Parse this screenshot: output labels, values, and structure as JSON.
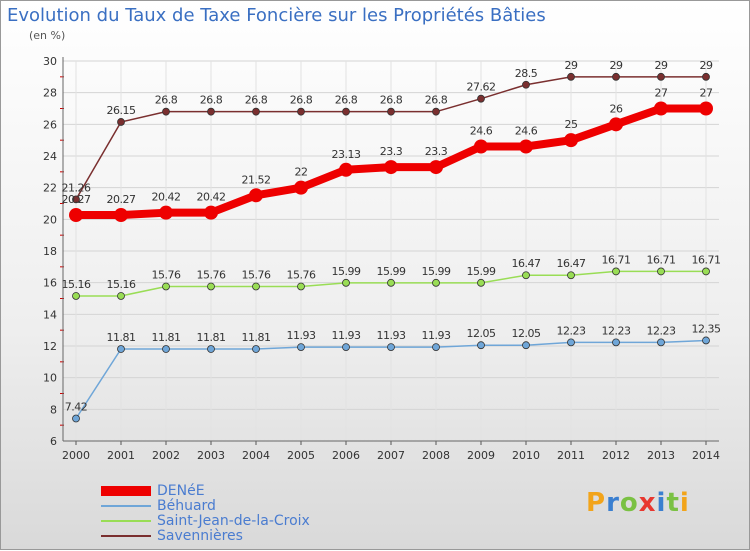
{
  "chart_data": {
    "type": "line",
    "title": "Evolution du Taux de Taxe Foncière sur les Propriétés Bâties",
    "ylabel": "(en %)",
    "xlabel": "",
    "ylim": [
      6,
      30
    ],
    "yticks": [
      "6",
      "8",
      "10",
      "12",
      "14",
      "16",
      "18",
      "20",
      "22",
      "24",
      "26",
      "28",
      "30"
    ],
    "categories": [
      "2000",
      "2001",
      "2002",
      "2003",
      "2004",
      "2005",
      "2006",
      "2007",
      "2008",
      "2009",
      "2010",
      "2011",
      "2012",
      "2013",
      "2014"
    ],
    "series": [
      {
        "name": "Savennières",
        "color": "#7a2f2f",
        "values": [
          21.26,
          26.15,
          26.8,
          26.8,
          26.8,
          26.8,
          26.8,
          26.8,
          26.8,
          27.62,
          28.5,
          29,
          29,
          29,
          29
        ],
        "labels": [
          "21.26",
          "26.15",
          "26.8",
          "26.8",
          "26.8",
          "26.8",
          "26.8",
          "26.8",
          "26.8",
          "27.62",
          "28.5",
          "29",
          "29",
          "29",
          "29"
        ]
      },
      {
        "name": "Saint-Jean-de-la-Croix",
        "color": "#99dd55",
        "values": [
          15.16,
          15.16,
          15.76,
          15.76,
          15.76,
          15.76,
          15.99,
          15.99,
          15.99,
          15.99,
          16.47,
          16.47,
          16.71,
          16.71,
          16.71
        ],
        "labels": [
          "15.16",
          "15.16",
          "15.76",
          "15.76",
          "15.76",
          "15.76",
          "15.99",
          "15.99",
          "15.99",
          "15.99",
          "16.47",
          "16.47",
          "16.71",
          "16.71",
          "16.71"
        ]
      },
      {
        "name": "Béhuard",
        "color": "#6fa6d8",
        "values": [
          7.42,
          11.81,
          11.81,
          11.81,
          11.81,
          11.93,
          11.93,
          11.93,
          11.93,
          12.05,
          12.05,
          12.23,
          12.23,
          12.23,
          12.35
        ],
        "labels": [
          "7.42",
          "11.81",
          "11.81",
          "11.81",
          "11.81",
          "11.93",
          "11.93",
          "11.93",
          "11.93",
          "12.05",
          "12.05",
          "12.23",
          "12.23",
          "12.23",
          "12.35"
        ]
      },
      {
        "name": "DENéE",
        "color": "#ee0000",
        "values": [
          20.27,
          20.27,
          20.42,
          20.42,
          21.52,
          22,
          23.13,
          23.3,
          23.3,
          24.6,
          24.6,
          25,
          26,
          27,
          27
        ],
        "labels": [
          "20.27",
          "20.27",
          "20.42",
          "20.42",
          "21.52",
          "22",
          "23.13",
          "23.3",
          "23.3",
          "24.6",
          "24.6",
          "25",
          "26",
          "27",
          "27"
        ]
      }
    ],
    "legend": [
      "DENéE",
      "Béhuard",
      "Saint-Jean-de-la-Croix",
      "Savennières"
    ],
    "legend_position": "bottom-left",
    "grid": true
  },
  "logo": {
    "text": "Proxiti"
  }
}
